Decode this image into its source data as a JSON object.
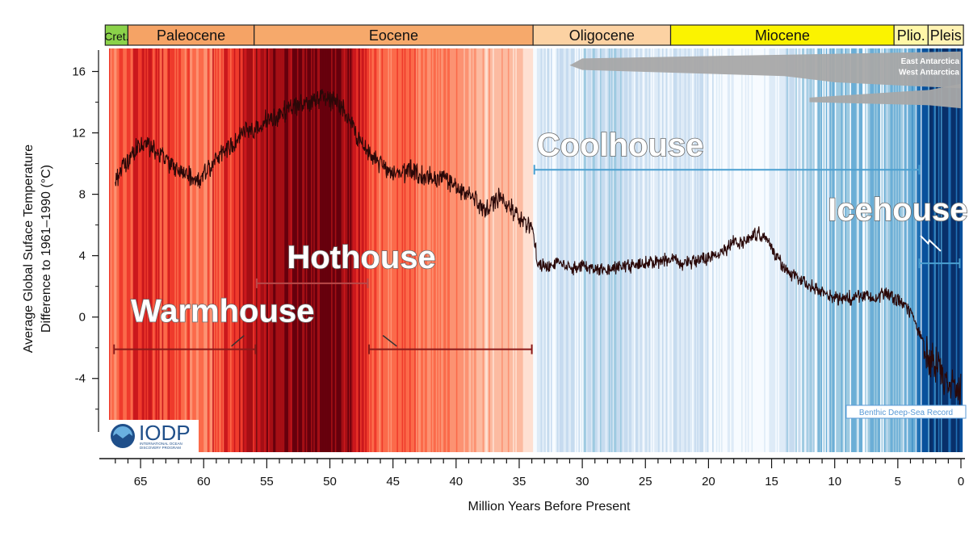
{
  "chart_data": {
    "type": "line",
    "title": "",
    "xlabel": "Million Years Before Present",
    "ylabel_line1": "Average Global Suface Temperature",
    "ylabel_line2": "Difference to 1961–1990 (°C)",
    "xlim": [
      67.5,
      0
    ],
    "ylim": [
      -8.8,
      17.5
    ],
    "x_ticks": [
      65,
      60,
      55,
      50,
      45,
      40,
      35,
      30,
      25,
      20,
      15,
      10,
      5,
      0
    ],
    "y_ticks": [
      16,
      12,
      8,
      4,
      0,
      -4
    ],
    "epochs": [
      {
        "name": "Cret.",
        "start": 67.8,
        "end": 66.0,
        "color": "#8bd24a"
      },
      {
        "name": "Paleocene",
        "start": 66.0,
        "end": 56.0,
        "color": "#f5a365"
      },
      {
        "name": "Eocene",
        "start": 56.0,
        "end": 33.9,
        "color": "#f6a96b"
      },
      {
        "name": "Oligocene",
        "start": 33.9,
        "end": 23.0,
        "color": "#fcd2a3"
      },
      {
        "name": "Miocene",
        "start": 23.0,
        "end": 5.3,
        "color": "#fbf300"
      },
      {
        "name": "Plio.",
        "start": 5.3,
        "end": 2.6,
        "color": "#fff7a8"
      },
      {
        "name": "Pleis",
        "start": 2.6,
        "end": -0.2,
        "color": "#fff2b3"
      }
    ],
    "regimes": [
      {
        "name": "Hothouse",
        "label_x": 47.5,
        "label_y": 3.2,
        "bars": [
          [
            55.8,
            47.0,
            2.2
          ]
        ],
        "color": "#b84a4a"
      },
      {
        "name": "Warmhouse",
        "label_x": 58.5,
        "label_y": -0.3,
        "bars": [
          [
            67.1,
            55.9,
            -2.1
          ],
          [
            46.9,
            34.0,
            -2.1
          ]
        ],
        "color": "#8b1a1a"
      },
      {
        "name": "Coolhouse",
        "label_x": 27,
        "label_y": 10.5,
        "bars": [
          [
            33.8,
            3.3,
            9.6
          ]
        ],
        "color": "#4a9fd0"
      },
      {
        "name": "Icehouse",
        "label_x": 5.0,
        "label_y": 6.3,
        "bars": [
          [
            3.3,
            0.1,
            3.5
          ]
        ],
        "color": "#4a9fd0"
      }
    ],
    "ice_sheets": [
      {
        "name": "East Antarctica",
        "start": 34,
        "end": 0,
        "y": 16.5
      },
      {
        "name": "West Antarctica",
        "start": 14,
        "end": 0,
        "y": 15.8
      }
    ],
    "series": [
      {
        "name": "Benthic Deep-Sea Record",
        "x": [
          67.0,
          66.5,
          66.0,
          65.5,
          65.0,
          64.5,
          64.0,
          63.5,
          63.0,
          62.5,
          62.0,
          61.5,
          61.0,
          60.5,
          60.0,
          59.5,
          59.0,
          58.5,
          58.0,
          57.5,
          57.0,
          56.5,
          56.0,
          55.5,
          55.0,
          54.5,
          54.0,
          53.5,
          53.0,
          52.5,
          52.0,
          51.5,
          51.0,
          50.5,
          50.0,
          49.5,
          49.0,
          48.5,
          48.0,
          47.5,
          47.0,
          46.5,
          46.0,
          45.5,
          45.0,
          44.5,
          44.0,
          43.5,
          43.0,
          42.5,
          42.0,
          41.5,
          41.0,
          40.5,
          40.0,
          39.5,
          39.0,
          38.5,
          38.0,
          37.5,
          37.0,
          36.5,
          36.0,
          35.5,
          35.0,
          34.5,
          34.0,
          33.7,
          33.5,
          33.0,
          32.0,
          31.0,
          30.0,
          29.0,
          28.0,
          27.0,
          26.0,
          25.0,
          24.0,
          23.0,
          22.0,
          21.0,
          20.0,
          19.0,
          18.0,
          17.0,
          16.0,
          15.0,
          14.0,
          13.5,
          13.0,
          12.5,
          12.0,
          11.0,
          10.0,
          9.0,
          8.0,
          7.0,
          6.0,
          5.0,
          4.0,
          3.5,
          3.0,
          2.5,
          2.0,
          1.5,
          1.0,
          0.5,
          0.0
        ],
        "values": [
          9.0,
          9.6,
          10.3,
          10.8,
          11.2,
          11.3,
          11.0,
          10.6,
          10.2,
          9.8,
          9.6,
          9.4,
          9.1,
          8.9,
          9.2,
          9.8,
          10.3,
          10.6,
          10.9,
          11.3,
          11.8,
          12.3,
          12.1,
          12.6,
          12.9,
          13.0,
          13.2,
          13.4,
          13.6,
          13.8,
          13.9,
          14.0,
          14.1,
          14.3,
          14.2,
          14.0,
          13.6,
          13.0,
          12.2,
          11.2,
          10.6,
          10.2,
          9.9,
          9.7,
          9.5,
          9.5,
          9.4,
          9.6,
          9.3,
          9.2,
          9.1,
          9.0,
          9.3,
          8.8,
          8.6,
          8.3,
          7.9,
          7.6,
          7.2,
          7.0,
          7.6,
          7.9,
          7.3,
          6.9,
          6.5,
          6.2,
          5.8,
          4.5,
          3.4,
          3.3,
          3.5,
          3.2,
          3.3,
          3.2,
          3.1,
          3.4,
          3.3,
          3.5,
          3.6,
          3.8,
          3.4,
          3.6,
          3.9,
          4.2,
          4.8,
          5.0,
          5.5,
          4.5,
          3.3,
          2.9,
          2.5,
          2.3,
          2.0,
          1.7,
          1.3,
          1.2,
          1.4,
          1.2,
          1.5,
          1.1,
          0.4,
          -0.6,
          -1.6,
          -2.5,
          -3.1,
          -3.7,
          -4.2,
          -4.6,
          -5.0
        ]
      }
    ],
    "logo": {
      "name": "IODP",
      "subtitle_1": "INTERNATIONAL OCEAN",
      "subtitle_2": "DISCOVERY PROGRAM"
    }
  }
}
